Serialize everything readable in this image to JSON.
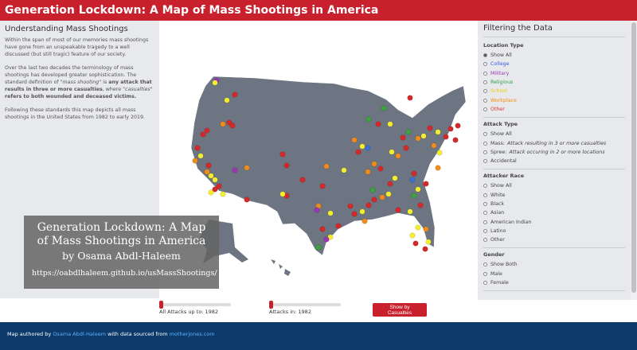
{
  "header": {
    "title": "Generation Lockdown: A Map of Mass Shootings in America"
  },
  "intro": {
    "heading": "Understanding Mass Shootings",
    "paragraphs": [
      [
        "Within the span of most of our memories mass shootings have gone from an unspeakable tragedy to a well discussed (but still tragic) feature of our society."
      ],
      [
        "Over the last two decades the terminology of mass shootings has developed greater sophistication. The standard definition of ",
        "\"mass shooting\"",
        " is ",
        "any attack that results in three or more casualties",
        ", where ",
        "\"casualties\" ",
        "refers to both wounded and deceased victims."
      ],
      [
        "Following these standards this map depicts all mass shootings in the United States from 1982 to early 2019."
      ]
    ]
  },
  "overlay": {
    "title": "Generation Lockdown: A Map of Mass Shootings in America",
    "author": "by Osama Abdl-Haleem",
    "url": "https://oabdlhaleem.github.io/usMassShootings/"
  },
  "filters": {
    "heading": "Filtering the Data",
    "groups": [
      {
        "title": "Location Type",
        "options": [
          {
            "label": "Show All"
          },
          {
            "label": "College"
          },
          {
            "label": "Military"
          },
          {
            "label": "Religious"
          },
          {
            "label": "School"
          },
          {
            "label": "Workplace"
          },
          {
            "label": "Other"
          }
        ]
      },
      {
        "title": "Attack Type",
        "options": [
          {
            "label": "Show All"
          },
          {
            "label": "Mass:",
            "note": "Attack resulting in 3 or more casualties"
          },
          {
            "label": "Spree:",
            "note": "Attack occuring in 2 or more locations"
          },
          {
            "label": "Accidental"
          }
        ]
      },
      {
        "title": "Attacker Race",
        "options": [
          {
            "label": "Show All"
          },
          {
            "label": "White"
          },
          {
            "label": "Black"
          },
          {
            "label": "Asian"
          },
          {
            "label": "American Indian"
          },
          {
            "label": "Latino"
          },
          {
            "label": "Other"
          }
        ]
      },
      {
        "title": "Gender",
        "options": [
          {
            "label": "Show Both"
          },
          {
            "label": "Male"
          },
          {
            "label": "Female"
          }
        ]
      }
    ]
  },
  "controls": {
    "sliders": [
      {
        "label": "All Attacks up to:",
        "value": 1982
      },
      {
        "label": "Attacks in:",
        "value": 1982
      }
    ],
    "button": "Show by Casualties"
  },
  "footer": {
    "prefix": "Map authored by",
    "author": "Osama Abdl-Haleem",
    "middle": "with data sourced from",
    "source": "motherjones.com"
  }
}
